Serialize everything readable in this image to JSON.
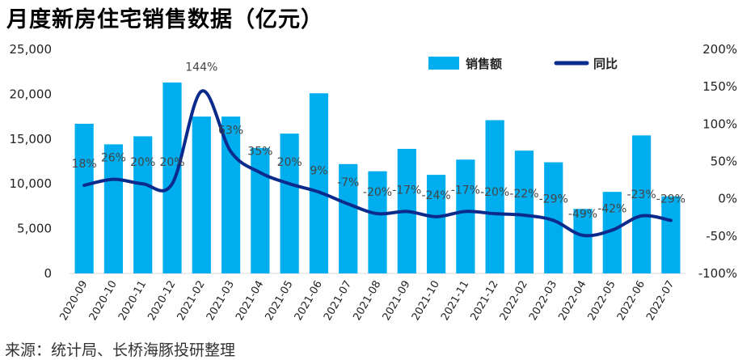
{
  "chart_data": {
    "type": "bar",
    "title": "月度新房住宅销售数据（亿元）",
    "source": "来源：统计局、长桥海豚投研整理",
    "categories": [
      "2020-09",
      "2020-10",
      "2020-11",
      "2020-12",
      "2021-02",
      "2021-03",
      "2021-04",
      "2021-05",
      "2021-06",
      "2021-07",
      "2021-08",
      "2021-09",
      "2021-10",
      "2021-11",
      "2021-12",
      "2022-02",
      "2022-03",
      "2022-04",
      "2022-05",
      "2022-06",
      "2022-07"
    ],
    "series": [
      {
        "name": "销售额",
        "type": "bar",
        "axis": "left",
        "color": "#00AEEF",
        "values": [
          16700,
          14400,
          15300,
          21300,
          17500,
          17500,
          14000,
          15600,
          20100,
          12200,
          11400,
          13900,
          11000,
          12700,
          17100,
          13700,
          12400,
          7200,
          9100,
          15400,
          8600
        ]
      },
      {
        "name": "同比",
        "type": "line",
        "axis": "right",
        "color": "#0A2A8C",
        "values": [
          18,
          26,
          20,
          20,
          144,
          63,
          35,
          20,
          9,
          -7,
          -20,
          -17,
          -24,
          -17,
          -20,
          -22,
          -29,
          -49,
          -42,
          -23,
          -29
        ],
        "labels": [
          "18%",
          "26%",
          "20%",
          "20%",
          "144%",
          "63%",
          "35%",
          "20%",
          "9%",
          "-7%",
          "-20%",
          "-17%",
          "-24%",
          "-17%",
          "-20%",
          "-22%",
          "-29%",
          "-49%",
          "-42%",
          "-23%",
          "-29%"
        ]
      }
    ],
    "yleft": {
      "min": 0,
      "max": 25000,
      "ticks": [
        0,
        5000,
        10000,
        15000,
        20000,
        25000
      ],
      "tick_labels": [
        "0",
        "5,000",
        "10,000",
        "15,000",
        "20,000",
        "25,000"
      ]
    },
    "yright": {
      "min": -100,
      "max": 200,
      "ticks": [
        -100,
        -50,
        0,
        50,
        100,
        150,
        200
      ],
      "tick_labels": [
        "-100%",
        "-50%",
        "0%",
        "50%",
        "100%",
        "150%",
        "200%"
      ]
    },
    "legend": {
      "position": "top-right",
      "items": [
        "销售额",
        "同比"
      ]
    },
    "grid": false
  }
}
